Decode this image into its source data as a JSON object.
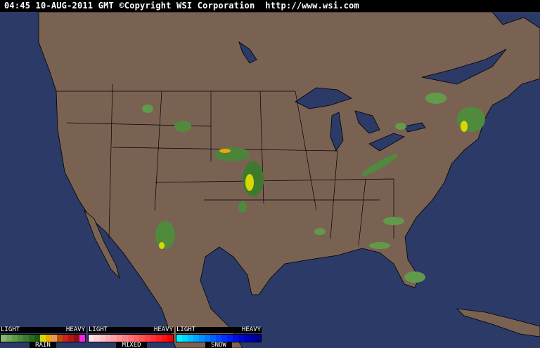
{
  "header": {
    "timestamp": "04:45 10-AUG-2011 GMT",
    "copyright": "©Copyright WSI Corporation",
    "url": "http://www.wsi.com"
  },
  "colors": {
    "ocean": "#2b3a66",
    "land": "#7a6253",
    "border": "#000000"
  },
  "legend": [
    {
      "name": "RAIN",
      "light": "LIGHT",
      "heavy": "HEAVY",
      "colors": [
        "#86b870",
        "#74a85e",
        "#629a4c",
        "#508a3c",
        "#3e7a2e",
        "#2c6a20",
        "#1c5a14",
        "#d8d800",
        "#f0a800",
        "#e09a60",
        "#b85000",
        "#d02020",
        "#b01818",
        "#901010",
        "#ff20e0"
      ]
    },
    {
      "name": "MIXED",
      "light": "LIGHT",
      "heavy": "HEAVY",
      "colors": [
        "#ffe0e0",
        "#ffd0d4",
        "#ffc0c4",
        "#ffb0b4",
        "#ffa0a4",
        "#ff9094",
        "#ff8084",
        "#ff7074",
        "#ff6064",
        "#ff5054",
        "#ff4044",
        "#ff3034",
        "#ff2024",
        "#ff1014",
        "#ff0000"
      ]
    },
    {
      "name": "SNOW",
      "light": "LIGHT",
      "heavy": "HEAVY",
      "colors": [
        "#00f0ff",
        "#00d8ff",
        "#00c0ff",
        "#00a8ff",
        "#0090ff",
        "#0078ff",
        "#0060ff",
        "#0048ff",
        "#0030ff",
        "#0020f0",
        "#0010e0",
        "#0008d0",
        "#0000c0",
        "#0000a8",
        "#000090"
      ]
    }
  ]
}
